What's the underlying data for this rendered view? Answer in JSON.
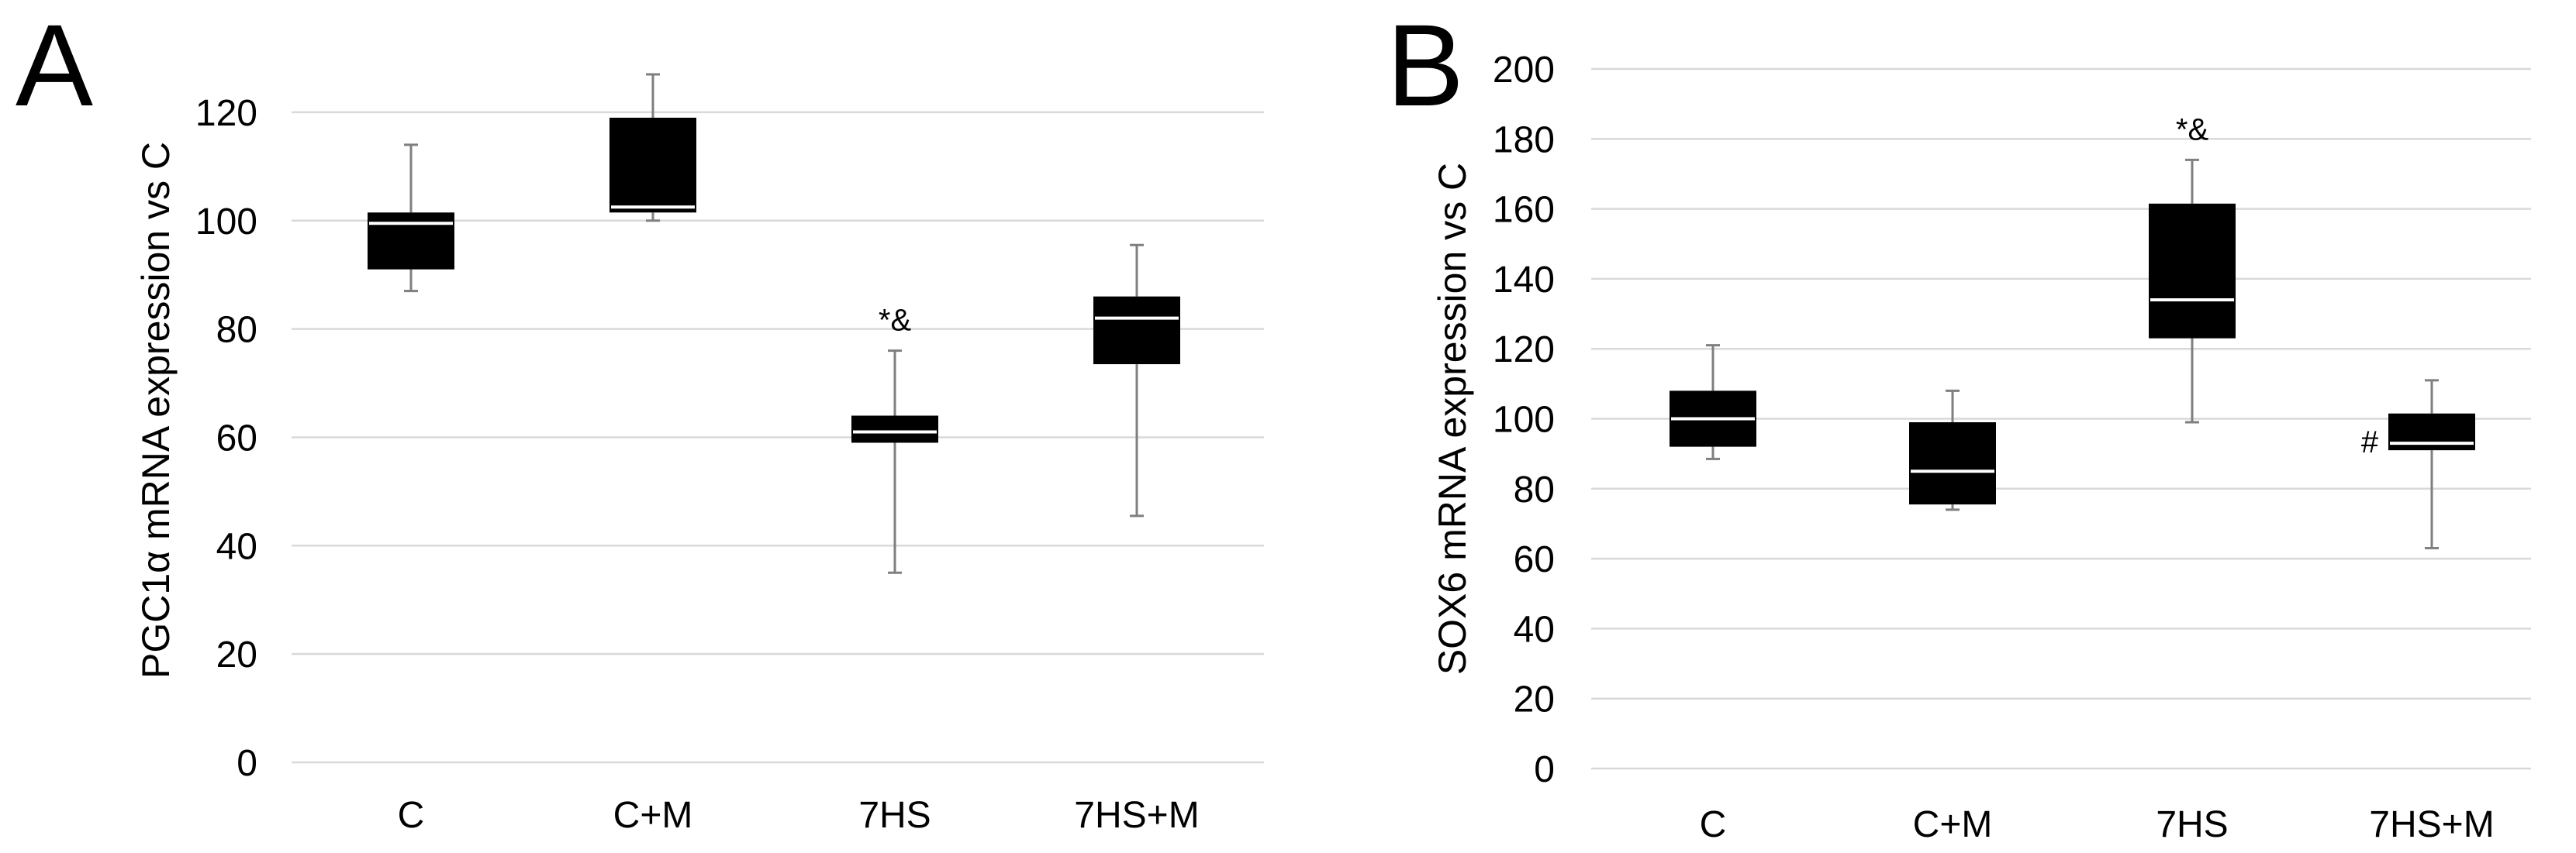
{
  "chart_data": [
    {
      "type": "box",
      "panel_label": "A",
      "title": "",
      "xlabel": "",
      "ylabel": "PGC1α mRNA expression vs C",
      "ylim": [
        0,
        130
      ],
      "yticks": [
        "0",
        "20",
        "40",
        "60",
        "80",
        "100",
        "120"
      ],
      "yticks_values": [
        0,
        20,
        40,
        60,
        80,
        100,
        120
      ],
      "grid": true,
      "categories": [
        "C",
        "C+M",
        "7HS",
        "7HS+M"
      ],
      "boxes": [
        {
          "min": 87,
          "q1": 91,
          "median": 99.5,
          "q3": 101.5,
          "max": 114,
          "annotation": ""
        },
        {
          "min": 100,
          "q1": 101.5,
          "median": 102.5,
          "q3": 119,
          "max": 127,
          "annotation": ""
        },
        {
          "min": 35,
          "q1": 59,
          "median": 61,
          "q3": 64,
          "max": 76,
          "annotation": "*&"
        },
        {
          "min": 45.5,
          "q1": 73.5,
          "median": 82,
          "q3": 86,
          "max": 95.5,
          "annotation": ""
        }
      ]
    },
    {
      "type": "box",
      "panel_label": "B",
      "title": "",
      "xlabel": "",
      "ylabel": "SOX6 mRNA expression vs C",
      "ylim": [
        0,
        200
      ],
      "yticks": [
        "0",
        "20",
        "40",
        "60",
        "80",
        "100",
        "120",
        "140",
        "160",
        "180",
        "200"
      ],
      "yticks_values": [
        0,
        20,
        40,
        60,
        80,
        100,
        120,
        140,
        160,
        180,
        200
      ],
      "grid": true,
      "categories": [
        "C",
        "C+M",
        "7HS",
        "7HS+M"
      ],
      "boxes": [
        {
          "min": 88.5,
          "q1": 92,
          "median": 100,
          "q3": 108,
          "max": 121,
          "annotation": ""
        },
        {
          "min": 74,
          "q1": 75.5,
          "median": 85,
          "q3": 99,
          "max": 108,
          "annotation": ""
        },
        {
          "min": 99,
          "q1": 123,
          "median": 134,
          "q3": 161.5,
          "max": 174,
          "annotation": "*&"
        },
        {
          "min": 63,
          "q1": 91,
          "median": 93,
          "q3": 101.5,
          "max": 111,
          "annotation": "#"
        }
      ]
    }
  ]
}
